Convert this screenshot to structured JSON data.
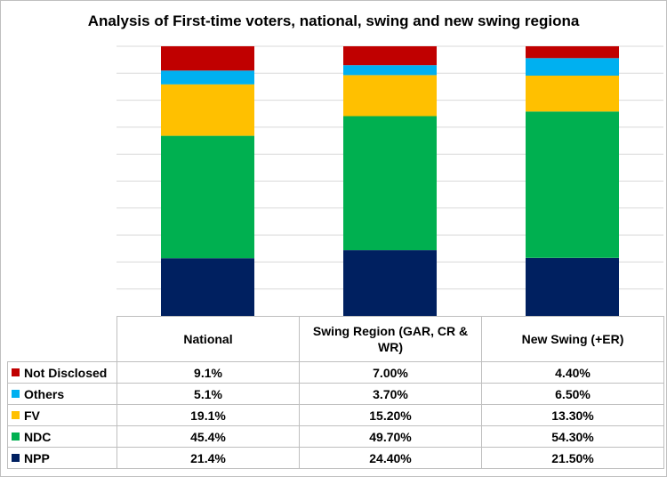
{
  "chart_data": {
    "type": "bar",
    "stacked": true,
    "title": "Analysis of First-time voters, national, swing and new swing regiona",
    "categories": [
      "National",
      "Swing Region (GAR, CR & WR)",
      "New Swing (+ER)"
    ],
    "series": [
      {
        "name": "NPP",
        "color": "#002060",
        "values": [
          21.4,
          24.4,
          21.5
        ],
        "labels": [
          "21.4%",
          "24.40%",
          "21.50%"
        ]
      },
      {
        "name": "NDC",
        "color": "#00B050",
        "values": [
          45.4,
          49.7,
          54.3
        ],
        "labels": [
          "45.4%",
          "49.70%",
          "54.30%"
        ]
      },
      {
        "name": "FV",
        "color": "#FFC000",
        "values": [
          19.1,
          15.2,
          13.3
        ],
        "labels": [
          "19.1%",
          "15.20%",
          "13.30%"
        ]
      },
      {
        "name": "Others",
        "color": "#00B0F0",
        "values": [
          5.1,
          3.7,
          6.5
        ],
        "labels": [
          "5.1%",
          "3.70%",
          "6.50%"
        ]
      },
      {
        "name": "Not Disclosed",
        "color": "#C00000",
        "values": [
          9.1,
          7.0,
          4.4
        ],
        "labels": [
          "9.1%",
          "7.00%",
          "4.40%"
        ]
      }
    ],
    "ylim": [
      0,
      100
    ],
    "grid": true,
    "legend": "data table below chart",
    "table_row_order": [
      "Not Disclosed",
      "Others",
      "FV",
      "NDC",
      "NPP"
    ]
  }
}
